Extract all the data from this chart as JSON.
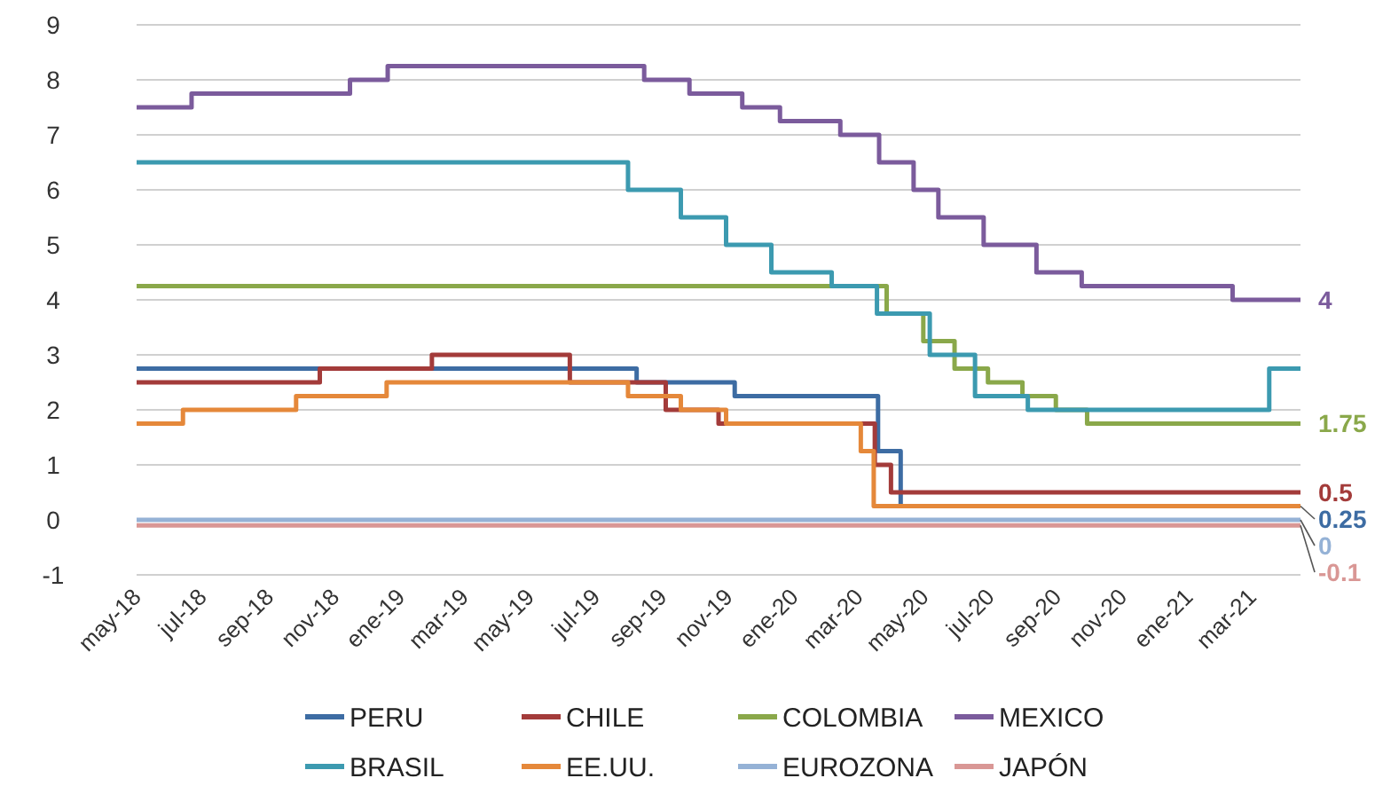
{
  "chart_data": {
    "type": "step",
    "xlim": [
      "2018-05-01",
      "2021-04-15"
    ],
    "ylim": [
      -1,
      9
    ],
    "yticks": [
      -1,
      0,
      1,
      2,
      3,
      4,
      5,
      6,
      7,
      8,
      9
    ],
    "xticks": [
      {
        "value": "2018-05-01",
        "label": "may-18"
      },
      {
        "value": "2018-07-01",
        "label": "jul-18"
      },
      {
        "value": "2018-09-01",
        "label": "sep-18"
      },
      {
        "value": "2018-11-01",
        "label": "nov-18"
      },
      {
        "value": "2019-01-01",
        "label": "ene-19"
      },
      {
        "value": "2019-03-01",
        "label": "mar-19"
      },
      {
        "value": "2019-05-01",
        "label": "may-19"
      },
      {
        "value": "2019-07-01",
        "label": "jul-19"
      },
      {
        "value": "2019-09-01",
        "label": "sep-19"
      },
      {
        "value": "2019-11-01",
        "label": "nov-19"
      },
      {
        "value": "2020-01-01",
        "label": "ene-20"
      },
      {
        "value": "2020-03-01",
        "label": "mar-20"
      },
      {
        "value": "2020-05-01",
        "label": "may-20"
      },
      {
        "value": "2020-07-01",
        "label": "jul-20"
      },
      {
        "value": "2020-09-01",
        "label": "sep-20"
      },
      {
        "value": "2020-11-01",
        "label": "nov-20"
      },
      {
        "value": "2021-01-01",
        "label": "ene-21"
      },
      {
        "value": "2021-03-01",
        "label": "mar-21"
      }
    ],
    "grid": "y",
    "legend": "bottom",
    "line_style": "solid",
    "marker": "none",
    "series": [
      {
        "name": "PERU",
        "color": "#3d6ca3",
        "x": [
          "2018-05-01",
          "2019-08-08",
          "2019-11-07",
          "2020-03-19",
          "2020-04-09",
          "2021-04-15"
        ],
        "values": [
          2.75,
          2.5,
          2.25,
          1.25,
          0.25,
          0.25
        ],
        "value_labels": [
          null,
          null,
          null,
          null,
          null,
          "0.25"
        ]
      },
      {
        "name": "CHILE",
        "color": "#a33b3a",
        "x": [
          "2018-05-01",
          "2018-10-18",
          "2019-01-30",
          "2019-06-07",
          "2019-09-04",
          "2019-10-23",
          "2020-03-16",
          "2020-03-31",
          "2021-04-15"
        ],
        "values": [
          2.5,
          2.75,
          3,
          2.5,
          2,
          1.75,
          1,
          0.5,
          0.5
        ],
        "value_labels": [
          null,
          null,
          null,
          null,
          null,
          null,
          null,
          null,
          "0.5"
        ]
      },
      {
        "name": "COLOMBIA",
        "color": "#8aa84a",
        "x": [
          "2018-05-01",
          "2020-03-27",
          "2020-04-30",
          "2020-05-29",
          "2020-06-29",
          "2020-07-31",
          "2020-08-31",
          "2020-09-29",
          "2021-04-15"
        ],
        "values": [
          4.25,
          3.75,
          3.25,
          2.75,
          2.5,
          2.25,
          2,
          1.75,
          1.75
        ],
        "value_labels": [
          null,
          null,
          null,
          null,
          null,
          null,
          null,
          null,
          "1.75"
        ]
      },
      {
        "name": "MEXICO",
        "color": "#7b5b9c",
        "x": [
          "2018-05-01",
          "2018-06-21",
          "2018-11-15",
          "2018-12-20",
          "2019-08-15",
          "2019-09-26",
          "2019-11-14",
          "2019-12-19",
          "2020-02-13",
          "2020-03-20",
          "2020-04-21",
          "2020-05-14",
          "2020-06-25",
          "2020-08-13",
          "2020-09-24",
          "2021-02-11",
          "2021-04-15"
        ],
        "values": [
          7.5,
          7.75,
          8,
          8.25,
          8,
          7.75,
          7.5,
          7.25,
          7,
          6.5,
          6,
          5.5,
          5,
          4.5,
          4.25,
          4,
          4
        ],
        "value_labels": [
          null,
          null,
          null,
          null,
          null,
          null,
          null,
          null,
          null,
          null,
          null,
          null,
          null,
          null,
          null,
          null,
          "4"
        ]
      },
      {
        "name": "BRASIL",
        "color": "#3c9ab0",
        "x": [
          "2018-05-01",
          "2019-07-31",
          "2019-09-18",
          "2019-10-30",
          "2019-12-11",
          "2020-02-05",
          "2020-03-18",
          "2020-05-06",
          "2020-06-17",
          "2020-08-05",
          "2021-03-17",
          "2021-04-15"
        ],
        "values": [
          6.5,
          6,
          5.5,
          5,
          4.5,
          4.25,
          3.75,
          3,
          2.25,
          2,
          2.75,
          2.75
        ]
      },
      {
        "name": "EE.UU.",
        "color": "#e5883a",
        "x": [
          "2018-05-01",
          "2018-06-13",
          "2018-09-26",
          "2018-12-19",
          "2019-07-31",
          "2019-09-18",
          "2019-10-30",
          "2020-03-03",
          "2020-03-15",
          "2021-04-15"
        ],
        "values": [
          1.75,
          2,
          2.25,
          2.5,
          2.25,
          2,
          1.75,
          1.25,
          0.25,
          0.25
        ]
      },
      {
        "name": "EUROZONA",
        "color": "#95b2d6",
        "x": [
          "2018-05-01",
          "2021-04-15"
        ],
        "values": [
          0,
          0
        ],
        "value_labels": [
          null,
          "0"
        ]
      },
      {
        "name": "JAPÓN",
        "color": "#d99795",
        "x": [
          "2018-05-01",
          "2021-04-15"
        ],
        "values": [
          -0.1,
          -0.1
        ],
        "value_labels": [
          null,
          "-0.1"
        ]
      }
    ]
  }
}
